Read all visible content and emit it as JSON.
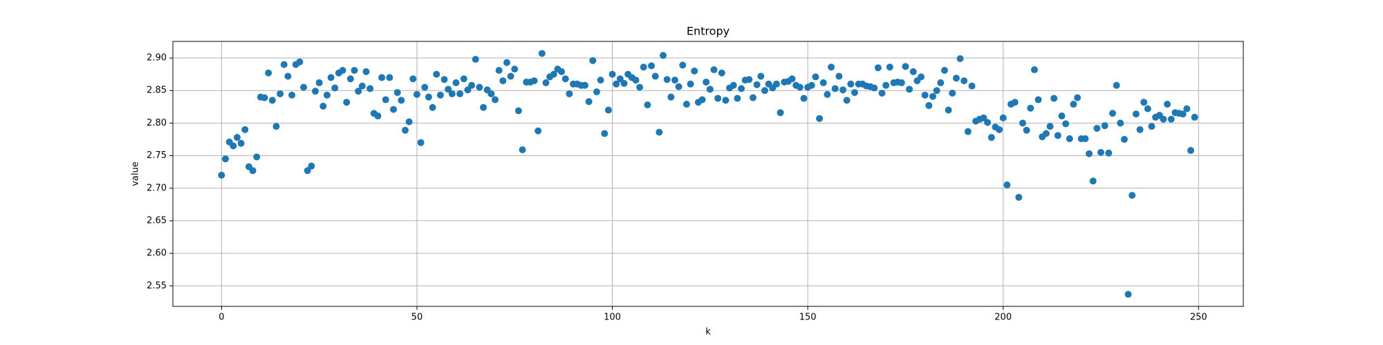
{
  "chart_data": {
    "type": "scatter",
    "title": "Entropy",
    "x_label": "k",
    "y_label": "value",
    "color": "#1f77b4",
    "grid": true,
    "xlim": [
      -12.45,
      261.45
    ],
    "ylim": [
      2.5185,
      2.9255
    ],
    "xticks": [
      0,
      50,
      100,
      150,
      200,
      250
    ],
    "yticks": [
      2.55,
      {
        "value": 2.6,
        "label": "2.60"
      },
      2.65,
      {
        "value": 2.7,
        "label": "2.70"
      },
      2.75,
      {
        "value": 2.8,
        "label": "2.80"
      },
      2.85,
      {
        "value": 2.9,
        "label": "2.90"
      }
    ],
    "x": [
      0,
      1,
      2,
      3,
      4,
      5,
      6,
      7,
      8,
      9,
      10,
      11,
      12,
      13,
      14,
      15,
      16,
      17,
      18,
      19,
      20,
      21,
      22,
      23,
      24,
      25,
      26,
      27,
      28,
      29,
      30,
      31,
      32,
      33,
      34,
      35,
      36,
      37,
      38,
      39,
      40,
      41,
      42,
      43,
      44,
      45,
      46,
      47,
      48,
      49,
      50,
      51,
      52,
      53,
      54,
      55,
      56,
      57,
      58,
      59,
      60,
      61,
      62,
      63,
      64,
      65,
      66,
      67,
      68,
      69,
      70,
      71,
      72,
      73,
      74,
      75,
      76,
      77,
      78,
      79,
      80,
      81,
      82,
      83,
      84,
      85,
      86,
      87,
      88,
      89,
      90,
      91,
      92,
      93,
      94,
      95,
      96,
      97,
      98,
      99,
      100,
      101,
      102,
      103,
      104,
      105,
      106,
      107,
      108,
      109,
      110,
      111,
      112,
      113,
      114,
      115,
      116,
      117,
      118,
      119,
      120,
      121,
      122,
      123,
      124,
      125,
      126,
      127,
      128,
      129,
      130,
      131,
      132,
      133,
      134,
      135,
      136,
      137,
      138,
      139,
      140,
      141,
      142,
      143,
      144,
      145,
      146,
      147,
      148,
      149,
      150,
      151,
      152,
      153,
      154,
      155,
      156,
      157,
      158,
      159,
      160,
      161,
      162,
      163,
      164,
      165,
      166,
      167,
      168,
      169,
      170,
      171,
      172,
      173,
      174,
      175,
      176,
      177,
      178,
      179,
      180,
      181,
      182,
      183,
      184,
      185,
      186,
      187,
      188,
      189,
      190,
      191,
      192,
      193,
      194,
      195,
      196,
      197,
      198,
      199,
      200,
      201,
      202,
      203,
      204,
      205,
      206,
      207,
      208,
      209,
      210,
      211,
      212,
      213,
      214,
      215,
      216,
      217,
      218,
      219,
      220,
      221,
      222,
      223,
      224,
      225,
      226,
      227,
      228,
      229,
      230,
      231,
      232,
      233,
      234,
      235,
      236,
      237,
      238,
      239,
      240,
      241,
      242,
      243,
      244,
      245,
      246,
      247,
      248,
      249
    ],
    "values": [
      2.72,
      2.745,
      2.771,
      2.765,
      2.778,
      2.769,
      2.79,
      2.733,
      2.727,
      2.748,
      2.84,
      2.839,
      2.877,
      2.835,
      2.795,
      2.845,
      2.89,
      2.872,
      2.843,
      2.89,
      2.894,
      2.855,
      2.727,
      2.734,
      2.849,
      2.862,
      2.826,
      2.843,
      2.87,
      2.854,
      2.877,
      2.881,
      2.832,
      2.868,
      2.881,
      2.849,
      2.857,
      2.879,
      2.853,
      2.815,
      2.811,
      2.87,
      2.836,
      2.87,
      2.821,
      2.847,
      2.835,
      2.789,
      2.802,
      2.868,
      2.844,
      2.77,
      2.855,
      2.84,
      2.824,
      2.875,
      2.843,
      2.867,
      2.852,
      2.845,
      2.862,
      2.845,
      2.868,
      2.851,
      2.858,
      2.898,
      2.855,
      2.824,
      2.851,
      2.845,
      2.836,
      2.881,
      2.865,
      2.893,
      2.872,
      2.883,
      2.819,
      2.759,
      2.863,
      2.863,
      2.865,
      2.788,
      2.907,
      2.862,
      2.871,
      2.875,
      2.883,
      2.879,
      2.868,
      2.845,
      2.86,
      2.86,
      2.858,
      2.858,
      2.833,
      2.896,
      2.848,
      2.866,
      2.784,
      2.82,
      2.875,
      2.86,
      2.868,
      2.861,
      2.875,
      2.87,
      2.866,
      2.855,
      2.886,
      2.828,
      2.888,
      2.872,
      2.786,
      2.904,
      2.867,
      2.84,
      2.866,
      2.856,
      2.889,
      2.829,
      2.86,
      2.88,
      2.832,
      2.836,
      2.863,
      2.852,
      2.882,
      2.838,
      2.877,
      2.835,
      2.854,
      2.858,
      2.838,
      2.853,
      2.866,
      2.867,
      2.839,
      2.859,
      2.872,
      2.85,
      2.86,
      2.854,
      2.86,
      2.816,
      2.863,
      2.864,
      2.868,
      2.858,
      2.855,
      2.838,
      2.855,
      2.858,
      2.871,
      2.807,
      2.862,
      2.844,
      2.886,
      2.853,
      2.872,
      2.851,
      2.835,
      2.86,
      2.847,
      2.86,
      2.86,
      2.857,
      2.856,
      2.854,
      2.885,
      2.846,
      2.858,
      2.886,
      2.862,
      2.863,
      2.862,
      2.887,
      2.852,
      2.879,
      2.865,
      2.871,
      2.843,
      2.827,
      2.841,
      2.85,
      2.862,
      2.881,
      2.82,
      2.846,
      2.869,
      2.899,
      2.865,
      2.787,
      2.857,
      2.803,
      2.806,
      2.808,
      2.801,
      2.778,
      2.794,
      2.79,
      2.808,
      2.705,
      2.829,
      2.832,
      2.686,
      2.8,
      2.789,
      2.823,
      2.882,
      2.836,
      2.779,
      2.784,
      2.795,
      2.838,
      2.781,
      2.811,
      2.799,
      2.776,
      2.829,
      2.839,
      2.776,
      2.776,
      2.753,
      2.711,
      2.792,
      2.755,
      2.796,
      2.754,
      2.815,
      2.858,
      2.8,
      2.775,
      2.537,
      2.689,
      2.814,
      2.79,
      2.832,
      2.822,
      2.795,
      2.809,
      2.812,
      2.806,
      2.829,
      2.806,
      2.816,
      2.815,
      2.814,
      2.822,
      2.758,
      2.809
    ]
  }
}
